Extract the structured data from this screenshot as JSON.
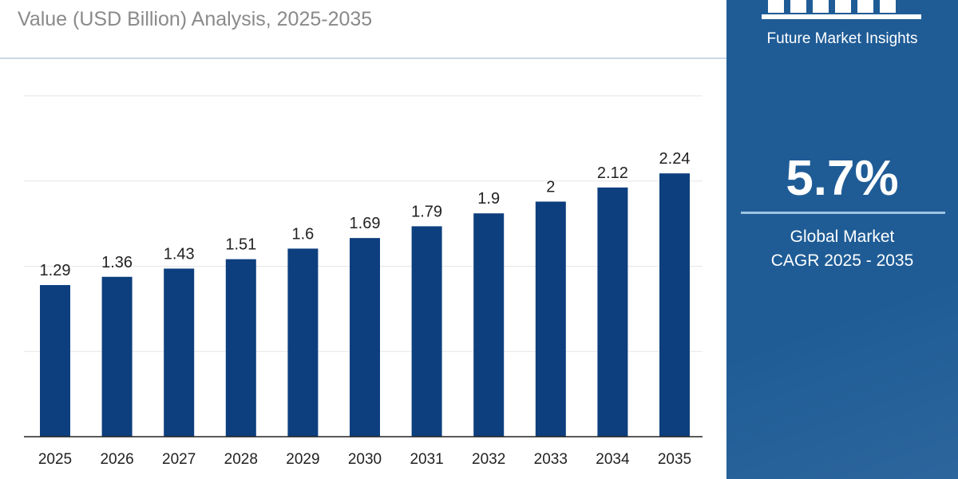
{
  "header": {
    "subtitle": "Value (USD Billion) Analysis, 2025-2035"
  },
  "sidebar": {
    "brand_name": "Future Market Insights",
    "logo_icon": "bar-columns-logo-icon",
    "cagr_value": "5.7%",
    "cagr_label_line1": "Global Market",
    "cagr_label_line2": "CAGR 2025 - 2035",
    "bg_color": "#1f5c96"
  },
  "chart_data": {
    "type": "bar",
    "categories": [
      "2025",
      "2026",
      "2027",
      "2028",
      "2029",
      "2030",
      "2031",
      "2032",
      "2033",
      "2034",
      "2035"
    ],
    "values": [
      1.29,
      1.36,
      1.43,
      1.51,
      1.6,
      1.69,
      1.79,
      1.9,
      2,
      2.12,
      2.24
    ],
    "data_labels": [
      "1.29",
      "1.36",
      "1.43",
      "1.51",
      "1.6",
      "1.69",
      "1.79",
      "1.9",
      "2",
      "2.12",
      "2.24"
    ],
    "title": "",
    "xlabel": "",
    "ylabel": "",
    "ylim": [
      0,
      2.9
    ],
    "grid": true,
    "bar_color": "#0d3f7e"
  }
}
